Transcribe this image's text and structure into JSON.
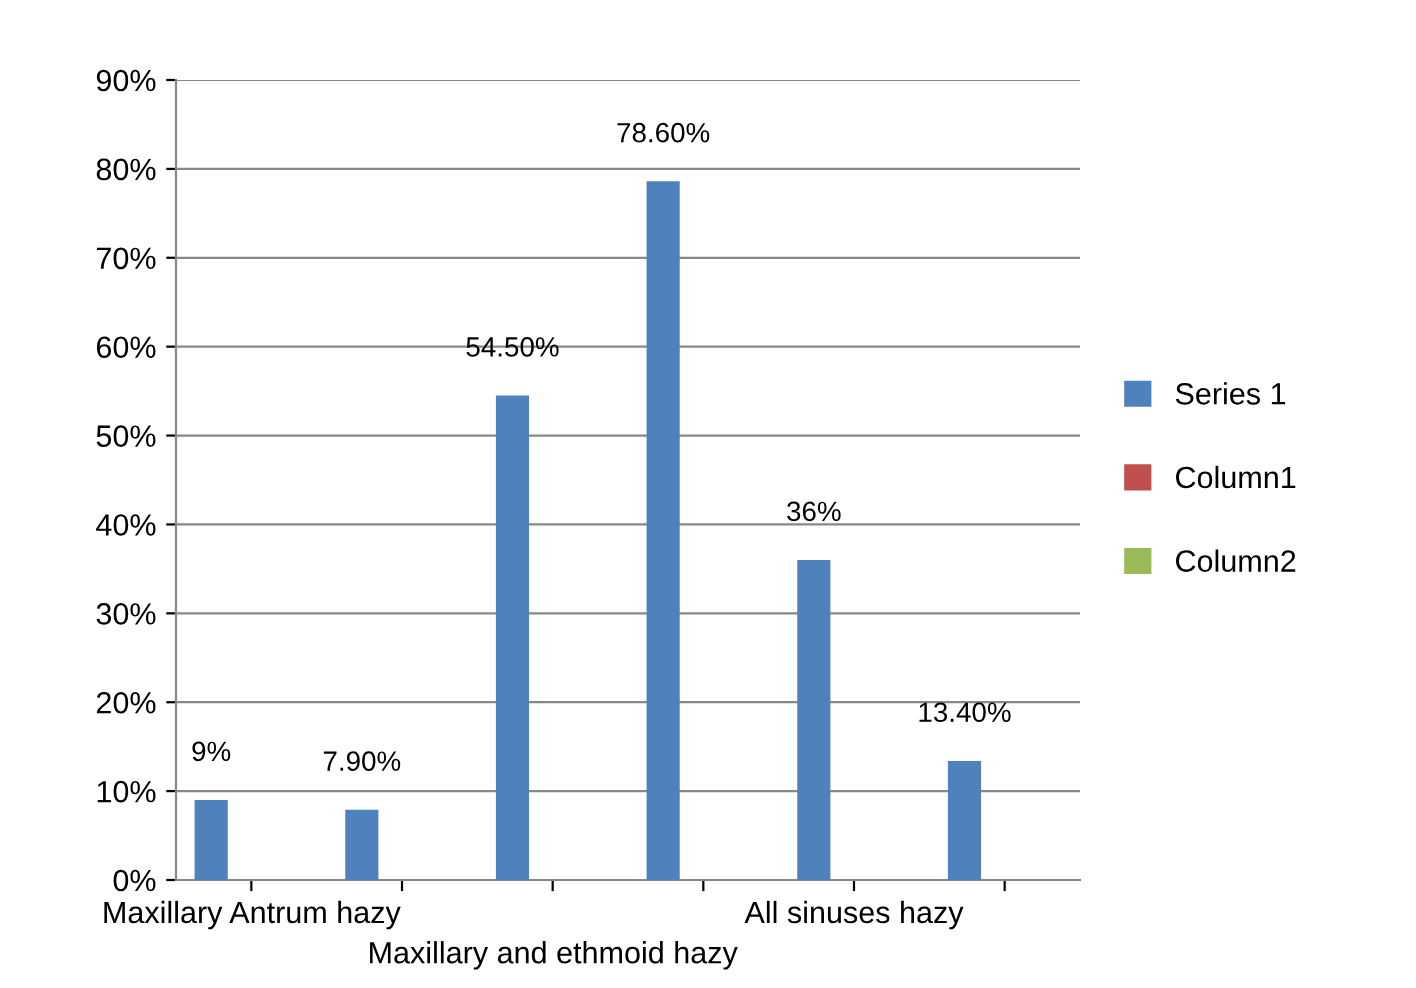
{
  "chart_data": {
    "type": "bar",
    "categories": [
      "Maxillary Antrum hazy",
      null,
      "Maxillary and ethmoid hazy",
      null,
      "All sinuses hazy",
      null
    ],
    "series": [
      {
        "name": "Series 1",
        "color": "#4f81bd",
        "values": [
          9,
          7.9,
          54.5,
          78.6,
          36,
          13.4
        ],
        "value_labels": [
          "9%",
          "7.90%",
          "54.50%",
          "78.60%",
          "36%",
          "13.40%"
        ]
      },
      {
        "name": "Column1",
        "color": "#c0504d",
        "values": [
          null,
          null,
          null,
          null,
          null,
          null
        ]
      },
      {
        "name": "Column2",
        "color": "#9bbb59",
        "values": [
          null,
          null,
          null,
          null,
          null,
          null
        ]
      }
    ],
    "ylim": [
      0,
      90
    ],
    "yticks": [
      {
        "value": 0,
        "label": "0%"
      },
      {
        "value": 10,
        "label": "10%"
      },
      {
        "value": 20,
        "label": "20%"
      },
      {
        "value": 30,
        "label": "30%"
      },
      {
        "value": 40,
        "label": "40%"
      },
      {
        "value": 50,
        "label": "50%"
      },
      {
        "value": 60,
        "label": "60%"
      },
      {
        "value": 70,
        "label": "70%"
      },
      {
        "value": 80,
        "label": "80%"
      },
      {
        "value": 90,
        "label": "90%"
      }
    ],
    "grid": "y",
    "legend": "right"
  }
}
